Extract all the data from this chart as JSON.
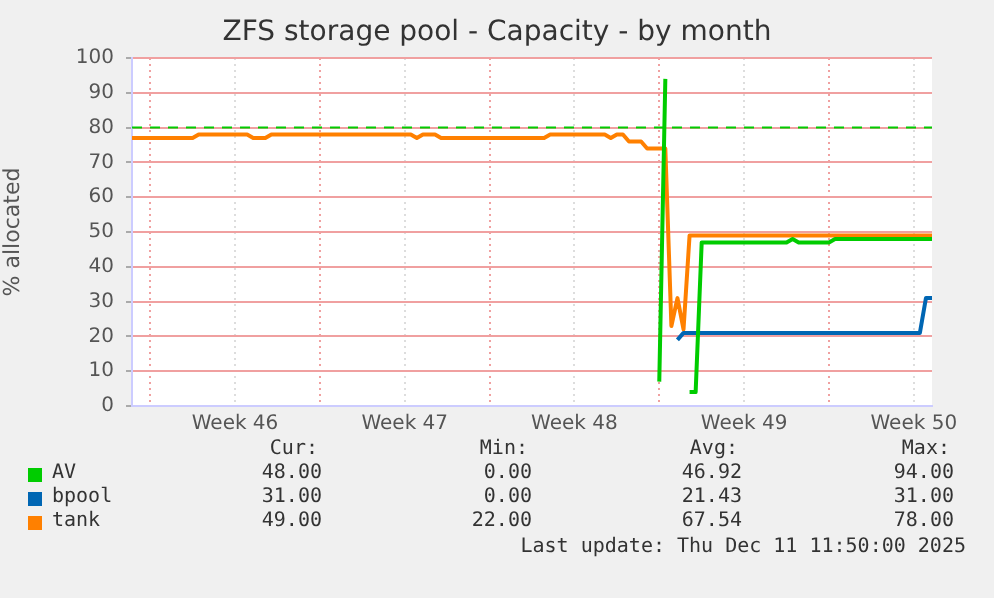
{
  "chart_data": {
    "type": "line",
    "title": "ZFS storage pool - Capacity - by month",
    "ylabel": "% allocated",
    "categories": [
      null,
      null,
      null,
      null,
      null,
      null,
      null,
      null,
      null,
      null,
      null,
      null,
      null,
      null,
      null,
      null,
      null,
      "Week 46",
      null,
      null,
      null,
      null,
      null,
      null,
      null,
      null,
      null,
      null,
      null,
      null,
      null,
      null,
      null,
      null,
      null,
      null,
      null,
      null,
      null,
      null,
      null,
      null,
      null,
      null,
      null,
      "Week 47",
      null,
      null,
      null,
      null,
      null,
      null,
      null,
      null,
      null,
      null,
      null,
      null,
      null,
      null,
      null,
      null,
      null,
      null,
      null,
      null,
      null,
      null,
      null,
      null,
      null,
      null,
      null,
      "Week 48",
      null,
      null,
      null,
      null,
      null,
      null,
      null,
      null,
      null,
      null,
      null,
      null,
      null,
      null,
      null,
      null,
      null,
      null,
      null,
      null,
      null,
      null,
      null,
      null,
      null,
      null,
      null,
      "Week 49",
      null,
      null,
      null,
      null,
      null,
      null,
      null,
      null,
      null,
      null,
      null,
      null,
      null,
      null,
      null,
      null,
      null,
      null,
      null,
      null,
      null,
      null,
      null,
      null,
      null,
      null,
      null,
      "Week 50",
      null,
      null,
      null
    ],
    "ylim": [
      0,
      100
    ],
    "yticks": [
      0,
      10,
      20,
      30,
      40,
      50,
      60,
      70,
      80,
      90,
      100
    ],
    "grid": true,
    "legend": "bottom",
    "marker": "none",
    "line_style": "solid",
    "ref_lines": [
      {
        "axis": "y",
        "value": 80,
        "color": "#00cc00",
        "line_style": "dashed"
      }
    ],
    "series": [
      {
        "name": "AV",
        "color": "#00cc00",
        "values": [
          null,
          null,
          null,
          null,
          null,
          null,
          null,
          null,
          null,
          null,
          null,
          null,
          null,
          null,
          null,
          null,
          null,
          null,
          null,
          null,
          null,
          null,
          null,
          null,
          null,
          null,
          null,
          null,
          null,
          null,
          null,
          null,
          null,
          null,
          null,
          null,
          null,
          null,
          null,
          null,
          null,
          null,
          null,
          null,
          null,
          null,
          null,
          null,
          null,
          null,
          null,
          null,
          null,
          null,
          null,
          null,
          null,
          null,
          null,
          null,
          null,
          null,
          null,
          null,
          null,
          null,
          null,
          null,
          null,
          null,
          null,
          null,
          null,
          null,
          null,
          null,
          null,
          null,
          null,
          null,
          null,
          null,
          null,
          null,
          null,
          null,
          null,
          7,
          94,
          null,
          null,
          null,
          4,
          4,
          47,
          47,
          47,
          47,
          47,
          47,
          47,
          47,
          47,
          47,
          47,
          47,
          47,
          47,
          47,
          48,
          47,
          47,
          47,
          47,
          47,
          47,
          48,
          48,
          48,
          48,
          48,
          48,
          48,
          48,
          48,
          48,
          48,
          48,
          48,
          48,
          48,
          48,
          48
        ]
      },
      {
        "name": "bpool",
        "color": "#0066b3",
        "values": [
          null,
          null,
          null,
          null,
          null,
          null,
          null,
          null,
          null,
          null,
          null,
          null,
          null,
          null,
          null,
          null,
          null,
          null,
          null,
          null,
          null,
          null,
          null,
          null,
          null,
          null,
          null,
          null,
          null,
          null,
          null,
          null,
          null,
          null,
          null,
          null,
          null,
          null,
          null,
          null,
          null,
          null,
          null,
          null,
          null,
          null,
          null,
          null,
          null,
          null,
          null,
          null,
          null,
          null,
          null,
          null,
          null,
          null,
          null,
          null,
          null,
          null,
          null,
          null,
          null,
          null,
          null,
          null,
          null,
          null,
          null,
          null,
          null,
          null,
          null,
          null,
          null,
          null,
          null,
          null,
          null,
          null,
          null,
          null,
          null,
          null,
          null,
          null,
          null,
          null,
          19,
          21,
          21,
          21,
          21,
          21,
          21,
          21,
          21,
          21,
          21,
          21,
          21,
          21,
          21,
          21,
          21,
          21,
          21,
          21,
          21,
          21,
          21,
          21,
          21,
          21,
          21,
          21,
          21,
          21,
          21,
          21,
          21,
          21,
          21,
          21,
          21,
          21,
          21,
          21,
          21,
          31,
          31
        ]
      },
      {
        "name": "tank",
        "color": "#ff8000",
        "values": [
          77,
          77,
          77,
          77,
          77,
          77,
          77,
          77,
          77,
          77,
          77,
          78,
          78,
          78,
          78,
          78,
          78,
          78,
          78,
          78,
          77,
          77,
          77,
          78,
          78,
          78,
          78,
          78,
          78,
          78,
          78,
          78,
          78,
          78,
          78,
          78,
          78,
          78,
          78,
          78,
          78,
          78,
          78,
          78,
          78,
          78,
          78,
          77,
          78,
          78,
          78,
          77,
          77,
          77,
          77,
          77,
          77,
          77,
          77,
          77,
          77,
          77,
          77,
          77,
          77,
          77,
          77,
          77,
          77,
          78,
          78,
          78,
          78,
          78,
          78,
          78,
          78,
          78,
          78,
          77,
          78,
          78,
          76,
          76,
          76,
          74,
          74,
          74,
          74,
          23,
          31,
          22,
          49,
          49,
          49,
          49,
          49,
          49,
          49,
          49,
          49,
          49,
          49,
          49,
          49,
          49,
          49,
          49,
          49,
          49,
          49,
          49,
          49,
          49,
          49,
          49,
          49,
          49,
          49,
          49,
          49,
          49,
          49,
          49,
          49,
          49,
          49,
          49,
          49,
          49,
          49,
          49,
          49
        ]
      }
    ],
    "annotations": [
      "Cur:",
      "Min:",
      "Avg:",
      "Max:",
      "48.00",
      "0.00",
      "46.92",
      "94.00",
      "31.00",
      "0.00",
      "21.43",
      "31.00",
      "49.00",
      "22.00",
      "67.54",
      "78.00",
      "Last update: Thu Dec 11 11:50:00 2025"
    ]
  }
}
